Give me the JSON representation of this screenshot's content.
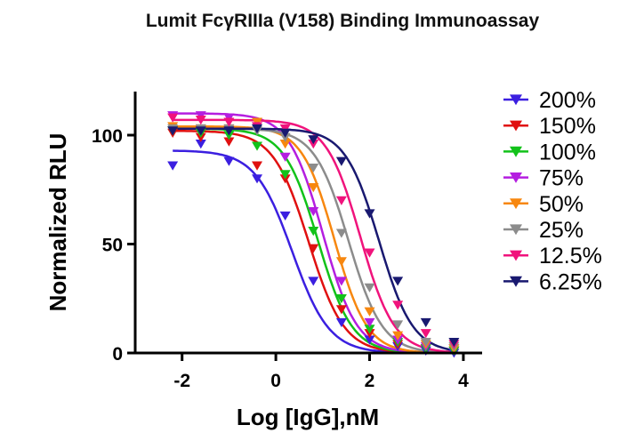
{
  "chart_data": {
    "type": "line",
    "title": "Lumit FcγRIIIa (V158) Binding Immunoassay",
    "xlabel": "Log [IgG],nM",
    "ylabel": "Normalized RLU",
    "xlim": [
      -3,
      4.4
    ],
    "ylim": [
      0,
      120
    ],
    "xticks": [
      -2,
      0,
      2,
      4
    ],
    "yticks": [
      0,
      50,
      100
    ],
    "grid": false,
    "legend_position": "right",
    "marker": "triangle-down",
    "x": [
      -2.2,
      -1.6,
      -1.0,
      -0.4,
      0.2,
      0.8,
      1.4,
      2.0,
      2.6,
      3.2,
      3.8
    ],
    "series": [
      {
        "name": "200%",
        "color": "#3b1fe0",
        "values": [
          86,
          96,
          88,
          80,
          63,
          33,
          14,
          6,
          3,
          1,
          0
        ],
        "fit": {
          "top": 93,
          "bottom": 0,
          "ec50": 0.35,
          "hill": 1.1
        }
      },
      {
        "name": "150%",
        "color": "#e01010",
        "values": [
          101,
          99,
          97,
          86,
          80,
          48,
          20,
          9,
          4,
          2,
          1
        ],
        "fit": {
          "top": 102,
          "bottom": 0,
          "ec50": 0.7,
          "hill": 1.15
        }
      },
      {
        "name": "100%",
        "color": "#12c21a",
        "values": [
          102,
          101,
          100,
          95,
          82,
          56,
          25,
          11,
          5,
          2,
          1
        ],
        "fit": {
          "top": 103,
          "bottom": 0,
          "ec50": 0.9,
          "hill": 1.2
        }
      },
      {
        "name": "75%",
        "color": "#b41ee0",
        "values": [
          109,
          109,
          108,
          103,
          90,
          65,
          33,
          14,
          6,
          3,
          2
        ],
        "fit": {
          "top": 110,
          "bottom": 0,
          "ec50": 1.0,
          "hill": 1.2
        }
      },
      {
        "name": "50%",
        "color": "#f7870f",
        "values": [
          104,
          103,
          103,
          106,
          96,
          76,
          42,
          19,
          8,
          4,
          2
        ],
        "fit": {
          "top": 104,
          "bottom": 0,
          "ec50": 1.25,
          "hill": 1.25
        }
      },
      {
        "name": "25%",
        "color": "#8c8c8c",
        "values": [
          103,
          103,
          103,
          102,
          99,
          85,
          55,
          30,
          13,
          5,
          3
        ],
        "fit": {
          "top": 103,
          "bottom": 0,
          "ec50": 1.55,
          "hill": 1.2
        }
      },
      {
        "name": "12.5%",
        "color": "#f0137c",
        "values": [
          108,
          107,
          106,
          104,
          103,
          96,
          70,
          46,
          22,
          9,
          4
        ],
        "fit": {
          "top": 107,
          "bottom": 0,
          "ec50": 1.8,
          "hill": 1.2
        }
      },
      {
        "name": "6.25%",
        "color": "#191970",
        "values": [
          102,
          102,
          102,
          103,
          101,
          98,
          88,
          64,
          33,
          14,
          5
        ],
        "fit": {
          "top": 103,
          "bottom": 0,
          "ec50": 2.2,
          "hill": 1.2
        }
      }
    ]
  }
}
